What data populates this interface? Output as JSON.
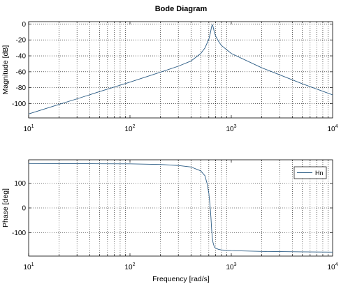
{
  "chart_data": {
    "title": "Bode Diagram",
    "colors": {
      "line": "#2a5b84",
      "grid": "#000000",
      "frame": "#000000",
      "legend_line": "#2a5b84"
    },
    "xscale": "log",
    "xlabel": "Frequency [rad/s]",
    "xlim": [
      10,
      10000
    ],
    "xticks": [
      {
        "base": "10",
        "exp": "1"
      },
      {
        "base": "10",
        "exp": "2"
      },
      {
        "base": "10",
        "exp": "3"
      },
      {
        "base": "10",
        "exp": "4"
      }
    ],
    "grid": true,
    "subplots": [
      {
        "type": "line",
        "ylabel": "Magnitude [dB]",
        "ylim": [
          -118,
          3
        ],
        "yticks": [
          "0",
          "-20",
          "-40",
          "-60",
          "-80",
          "-100"
        ],
        "series": [
          {
            "x": [
              10,
              20,
              30,
              50,
              100,
              200,
              300,
              400,
              500,
              550,
              600,
              620,
              640,
              650,
              660,
              680,
              700,
              750,
              800,
              1000,
              2000,
              5000,
              10000
            ],
            "y": [
              -113,
              -101,
              -94,
              -85,
              -73,
              -60.5,
              -53,
              -46.5,
              -37,
              -30,
              -19,
              -12,
              -3,
              -1,
              -3,
              -10,
              -15,
              -22,
              -27,
              -37,
              -55,
              -75,
              -89
            ]
          }
        ]
      },
      {
        "type": "line",
        "ylabel": "Phase [deg]",
        "ylim": [
          -195,
          195
        ],
        "yticks": [
          "100",
          "0",
          "-100"
        ],
        "legend": {
          "position": "top-right",
          "entries": [
            "Hn"
          ]
        },
        "series": [
          {
            "name": "Hn",
            "x": [
              10,
              50,
              100,
              200,
              300,
              400,
              500,
              550,
              580,
              600,
              620,
              630,
              640,
              650,
              660,
              680,
              700,
              750,
              800,
              1000,
              2000,
              5000,
              10000
            ],
            "y": [
              180,
              179,
              178.5,
              176,
              172,
              166,
              150,
              130,
              95,
              60,
              0,
              -40,
              -90,
              -120,
              -140,
              -158,
              -163,
              -168,
              -170,
              -173,
              -176,
              -178,
              -179
            ]
          }
        ]
      }
    ]
  }
}
